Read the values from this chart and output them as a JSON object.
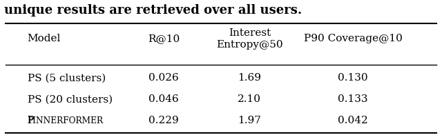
{
  "title_text": "unique results are retrieved over all users.",
  "row_labels": [
    "PS (5 clusters)",
    "PS (20 clusters)",
    "PINNERFORMER"
  ],
  "row_data": [
    [
      "0.026",
      "1.69",
      "0.130"
    ],
    [
      "0.046",
      "2.10",
      "0.133"
    ],
    [
      "0.229",
      "1.97",
      "0.042"
    ]
  ],
  "col_labels": [
    "R@10",
    "Interest\nEntropy@50",
    "P90 Coverage@10"
  ],
  "background_color": "#ffffff",
  "text_color": "#000000",
  "font_size": 11,
  "header_font_size": 11
}
